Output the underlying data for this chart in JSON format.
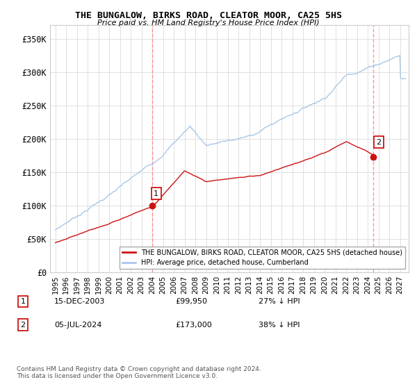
{
  "title": "THE BUNGALOW, BIRKS ROAD, CLEATOR MOOR, CA25 5HS",
  "subtitle": "Price paid vs. HM Land Registry's House Price Index (HPI)",
  "ylabel_ticks": [
    "£0",
    "£50K",
    "£100K",
    "£150K",
    "£200K",
    "£250K",
    "£300K",
    "£350K"
  ],
  "ytick_values": [
    0,
    50000,
    100000,
    150000,
    200000,
    250000,
    300000,
    350000
  ],
  "ylim": [
    0,
    370000
  ],
  "xlim_start": 1994.5,
  "xlim_end": 2027.8,
  "sale1_x": 2003.96,
  "sale1_y": 99950,
  "sale1_label": "1",
  "sale1_date": "15-DEC-2003",
  "sale1_price": "£99,950",
  "sale1_hpi": "27% ↓ HPI",
  "sale2_x": 2024.5,
  "sale2_y": 173000,
  "sale2_label": "2",
  "sale2_date": "05-JUL-2024",
  "sale2_price": "£173,000",
  "sale2_hpi": "38% ↓ HPI",
  "hpi_color": "#a8c8e8",
  "price_color": "#cc1111",
  "vline_color": "#ff8888",
  "background_color": "#ffffff",
  "grid_color": "#e0e0e0",
  "legend_label_red": "THE BUNGALOW, BIRKS ROAD, CLEATOR MOOR, CA25 5HS (detached house)",
  "legend_label_blue": "HPI: Average price, detached house, Cumberland",
  "footer": "Contains HM Land Registry data © Crown copyright and database right 2024.\nThis data is licensed under the Open Government Licence v3.0.",
  "xtick_years": [
    1995,
    1996,
    1997,
    1998,
    1999,
    2000,
    2001,
    2002,
    2003,
    2004,
    2005,
    2006,
    2007,
    2008,
    2009,
    2010,
    2011,
    2012,
    2013,
    2014,
    2015,
    2016,
    2017,
    2018,
    2019,
    2020,
    2021,
    2022,
    2023,
    2024,
    2025,
    2026,
    2027
  ]
}
